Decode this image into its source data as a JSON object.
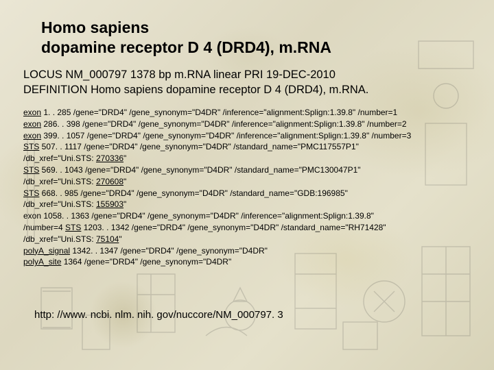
{
  "colors": {
    "bg_base": "#e8e4d2",
    "text": "#000000",
    "sketch_stroke": "#3a3a3a"
  },
  "title_line1": "Homo sapiens",
  "title_line2": "dopamine receptor D 4 (DRD4), m.RNA",
  "locus_line": "LOCUS NM_000797 1378 bp m.RNA linear PRI 19-DEC-2010",
  "definition_line": "DEFINITION Homo sapiens dopamine receptor D 4 (DRD4), m.RNA.",
  "features": [
    {
      "link": "exon",
      "rest": " 1. . 285 /gene=\"DRD4\" /gene_synonym=\"D4DR\" /inference=\"alignment:Splign:1.39.8\" /number=1"
    },
    {
      "link": "exon",
      "rest": " 286. . 398 /gene=\"DRD4\" /gene_synonym=\"D4DR\" /inference=\"alignment:Splign:1.39.8\" /number=2"
    },
    {
      "link": "exon",
      "rest": " 399. . 1057 /gene=\"DRD4\" /gene_synonym=\"D4DR\" /inference=\"alignment:Splign:1.39.8\" /number=3"
    },
    {
      "link": "STS",
      "rest": " 507. . 1117 /gene=\"DRD4\" /gene_synonym=\"D4DR\" /standard_name=\"PMC117557P1\""
    },
    {
      "plain": "/db_xref=\"Uni.STS: ",
      "link2": "270336",
      "tail": "\""
    },
    {
      "link": "STS",
      "rest": " 569. . 1043 /gene=\"DRD4\" /gene_synonym=\"D4DR\" /standard_name=\"PMC130047P1\""
    },
    {
      "plain": "/db_xref=\"Uni.STS: ",
      "link2": "270608",
      "tail": "\""
    },
    {
      "link": "STS",
      "rest": " 668. . 985 /gene=\"DRD4\" /gene_synonym=\"D4DR\" /standard_name=\"GDB:196985\""
    },
    {
      "plain": "/db_xref=\"Uni.STS: ",
      "link2": "155903",
      "tail": "\""
    },
    {
      "plain": "exon 1058. . 1363 /gene=\"DRD4\" /gene_synonym=\"D4DR\" /inference=\"alignment:Splign:1.39.8\""
    },
    {
      "plain": "/number=4 ",
      "link2": "STS",
      "tail": " 1203. . 1342 /gene=\"DRD4\" /gene_synonym=\"D4DR\" /standard_name=\"RH71428\""
    },
    {
      "plain": "/db_xref=\"Uni.STS: ",
      "link2": "75104",
      "tail": "\""
    },
    {
      "link": "polyA_signal",
      "rest": " 1342. . 1347 /gene=\"DRD4\" /gene_synonym=\"D4DR\""
    },
    {
      "link": "polyA_site",
      "rest": " 1364 /gene=\"DRD4\" /gene_synonym=\"D4DR\""
    }
  ],
  "url": "http: //www. ncbi. nlm. nih. gov/nuccore/NM_000797. 3"
}
